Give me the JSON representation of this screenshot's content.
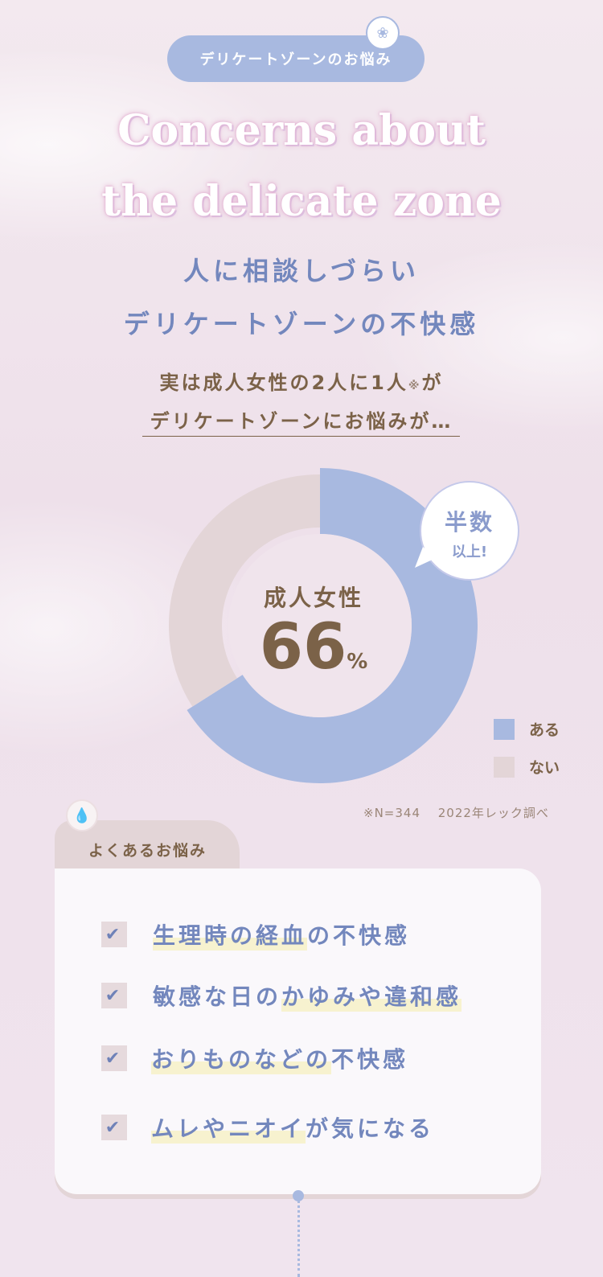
{
  "header": {
    "pill_label": "デリケートゾーンのお悩み",
    "pill_icon": "droplets-icon",
    "title_en_1": "Concerns about",
    "title_en_2": "the delicate zone",
    "title_jp_1": "人に相談しづらい",
    "title_jp_2": "デリケートゾーンの不快感",
    "lead_1": "実は成人女性の2人に1人",
    "lead_mark": "※",
    "lead_1b": "が",
    "lead_2": "デリケートゾーンにお悩みが…"
  },
  "chart_data": {
    "type": "pie",
    "donut": true,
    "categories": [
      "ある",
      "ない"
    ],
    "values": [
      66,
      34
    ],
    "colors": [
      "#a8b9e0",
      "#e3d5d7"
    ],
    "center_label": "成人女性",
    "center_value": "66",
    "center_unit": "%",
    "legend": "bottom-right"
  },
  "bubble": {
    "line1": "半数",
    "line2": "以上!"
  },
  "note": "※N=344　 2022年レック調べ",
  "concerns": {
    "title": "よくあるお悩み",
    "icon": "droplet-icon",
    "items": [
      {
        "hl": "生理時の経血",
        "rest": "の不快感"
      },
      {
        "pre": "敏感な日の",
        "hl": "かゆみや違和感"
      },
      {
        "hl": "おりものなどの",
        "rest": "不快感"
      },
      {
        "hl": "ムレやニオイ",
        "rest": "が気になる"
      }
    ]
  }
}
